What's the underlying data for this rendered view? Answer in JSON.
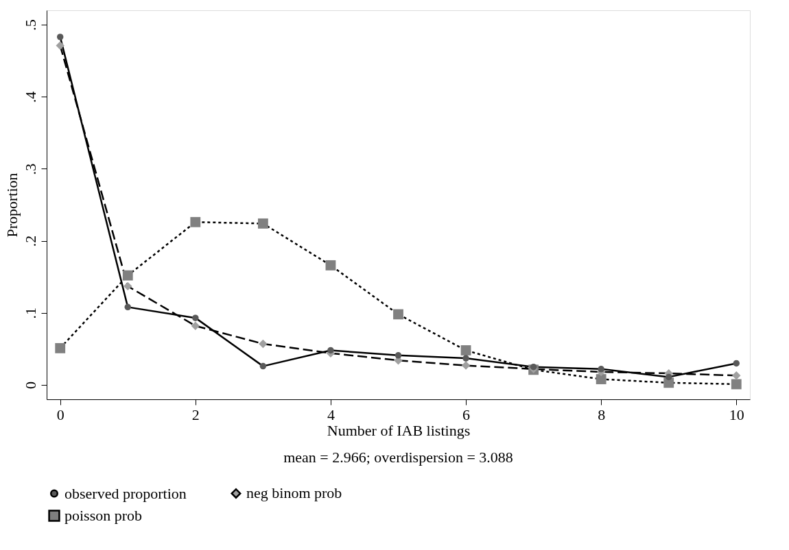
{
  "chart_data": {
    "type": "line",
    "xlabel": "Number of IAB listings",
    "ylabel": "Proportion",
    "annotations": [
      "mean = 2.966; overdispersion = 3.088"
    ],
    "x": [
      0,
      1,
      2,
      3,
      4,
      5,
      6,
      7,
      8,
      9,
      10
    ],
    "xlim": [
      -0.2,
      10.2
    ],
    "xticks": [
      0,
      2,
      4,
      6,
      8,
      10
    ],
    "ylim": [
      -0.02,
      0.52
    ],
    "yticks": [
      {
        "value": 0,
        "label": "0"
      },
      {
        "value": 0.1,
        "label": ".1"
      },
      {
        "value": 0.2,
        "label": ".2"
      },
      {
        "value": 0.3,
        "label": ".3"
      },
      {
        "value": 0.4,
        "label": ".4"
      },
      {
        "value": 0.5,
        "label": ".5"
      }
    ],
    "grid": false,
    "legend": "bottom",
    "series": [
      {
        "name": "observed proportion",
        "color": "#595959",
        "marker": "circle",
        "line_style": "solid",
        "values": [
          0.483,
          0.108,
          0.093,
          0.026,
          0.048,
          0.041,
          0.037,
          0.025,
          0.022,
          0.011,
          0.03
        ]
      },
      {
        "name": "neg binom prob",
        "color": "#a0a0a0",
        "marker": "diamond",
        "line_style": "dashed",
        "values": [
          0.471,
          0.137,
          0.082,
          0.057,
          0.044,
          0.034,
          0.027,
          0.022,
          0.018,
          0.016,
          0.013
        ]
      },
      {
        "name": "poisson prob",
        "color": "#808080",
        "marker": "square",
        "line_style": "dotted",
        "values": [
          0.051,
          0.152,
          0.226,
          0.224,
          0.166,
          0.098,
          0.048,
          0.021,
          0.008,
          0.003,
          0.001
        ]
      }
    ]
  }
}
